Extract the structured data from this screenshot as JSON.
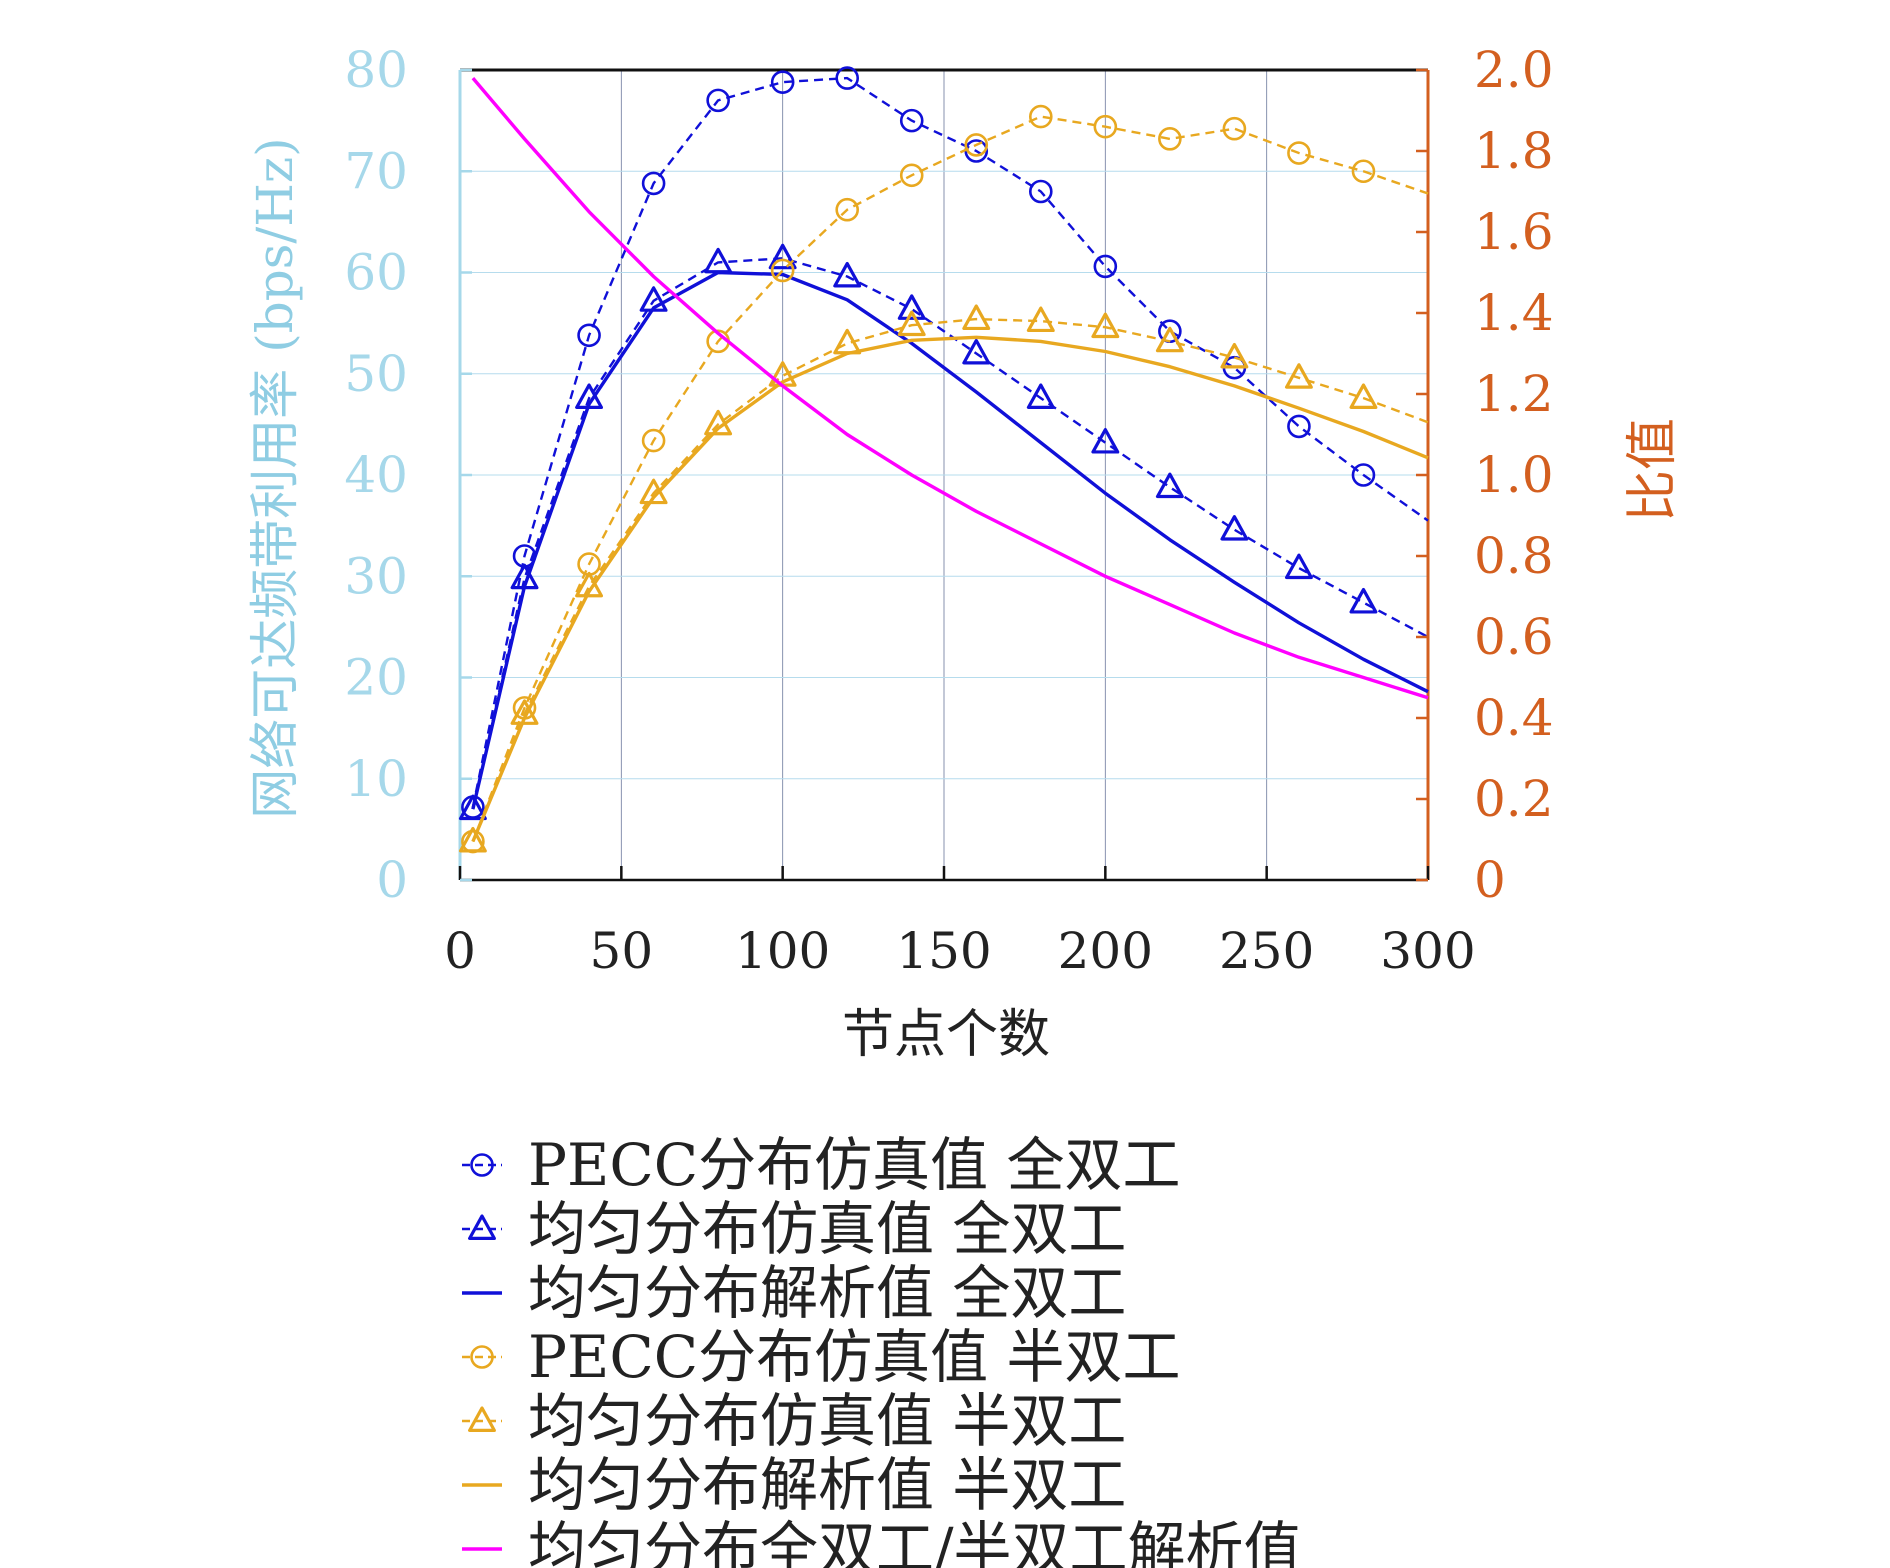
{
  "chart_data": {
    "type": "line",
    "xlabel": "节点个数",
    "ylabel_left": "网络可达频带利用率 (bps/Hz)",
    "ylabel_right": "比值",
    "xlim": [
      0,
      300
    ],
    "ylim_left": [
      0,
      80
    ],
    "ylim_right": [
      0,
      2.0
    ],
    "xticks": [
      "0",
      "50",
      "100",
      "150",
      "200",
      "250",
      "300"
    ],
    "yticks_left": [
      "0",
      "10",
      "20",
      "30",
      "40",
      "50",
      "60",
      "70",
      "80"
    ],
    "yticks_right": [
      "0",
      "0.2",
      "0.4",
      "0.6",
      "0.8",
      "1.0",
      "1.2",
      "1.4",
      "1.6",
      "1.8",
      "2.0"
    ],
    "grid": true,
    "legend_position": "below",
    "colors": {
      "full_duplex": "#1010d8",
      "half_duplex": "#e8a820",
      "ratio": "#ff00ff",
      "left_axis": "#a6d8ea",
      "right_axis": "#d35f1f"
    },
    "series": [
      {
        "name": "PECC分布仿真值 全双工",
        "axis": "left",
        "style": "dashed",
        "marker": "circle",
        "color": "#1010d8",
        "x": [
          4,
          20,
          40,
          60,
          80,
          100,
          120,
          140,
          160,
          180,
          200,
          220,
          240,
          260,
          280,
          300
        ],
        "y": [
          7.2,
          32,
          53.8,
          68.8,
          77,
          78.8,
          79.2,
          75,
          72,
          68,
          60.6,
          54.2,
          50.6,
          44.8,
          40,
          35.5
        ]
      },
      {
        "name": "均匀分布仿真值 全双工",
        "axis": "left",
        "style": "dashed",
        "marker": "triangle",
        "color": "#1010d8",
        "x": [
          4,
          20,
          40,
          60,
          80,
          100,
          120,
          140,
          160,
          180,
          200,
          220,
          240,
          260,
          280,
          300
        ],
        "y": [
          7,
          29.8,
          47.6,
          57.2,
          61,
          61.4,
          59.6,
          56.4,
          52,
          47.6,
          43.2,
          38.8,
          34.6,
          30.8,
          27.4,
          24
        ]
      },
      {
        "name": "均匀分布解析值 全双工",
        "axis": "left",
        "style": "solid",
        "marker": "none",
        "color": "#1010d8",
        "x": [
          4,
          20,
          40,
          60,
          80,
          100,
          120,
          140,
          160,
          180,
          200,
          220,
          240,
          260,
          280,
          300
        ],
        "y": [
          7,
          29,
          47,
          56.5,
          60,
          59.8,
          57.3,
          53,
          48.2,
          43.2,
          38.2,
          33.6,
          29.4,
          25.4,
          21.8,
          18.6
        ]
      },
      {
        "name": "PECC分布仿真值 半双工",
        "axis": "left",
        "style": "dashed",
        "marker": "circle",
        "color": "#e8a820",
        "x": [
          4,
          20,
          40,
          60,
          80,
          100,
          120,
          140,
          160,
          180,
          200,
          220,
          240,
          260,
          280,
          300
        ],
        "y": [
          3.8,
          17,
          31.2,
          43.4,
          53.2,
          60.2,
          66.2,
          69.6,
          72.6,
          75.4,
          74.4,
          73.2,
          74.2,
          71.8,
          70,
          67.8
        ]
      },
      {
        "name": "均匀分布仿真值 半双工",
        "axis": "left",
        "style": "dashed",
        "marker": "triangle",
        "color": "#e8a820",
        "x": [
          4,
          20,
          40,
          60,
          80,
          100,
          120,
          140,
          160,
          180,
          200,
          220,
          240,
          260,
          280,
          300
        ],
        "y": [
          3.8,
          16.4,
          29,
          38.2,
          45,
          49.8,
          53,
          54.8,
          55.4,
          55.2,
          54.6,
          53.2,
          51.6,
          49.6,
          47.6,
          45.2
        ]
      },
      {
        "name": "均匀分布解析值 半双工",
        "axis": "left",
        "style": "solid",
        "marker": "none",
        "color": "#e8a820",
        "x": [
          4,
          20,
          40,
          60,
          80,
          100,
          120,
          140,
          160,
          180,
          200,
          220,
          240,
          260,
          280,
          300
        ],
        "y": [
          3.8,
          16,
          28.5,
          37.8,
          44.6,
          49.2,
          52,
          53.3,
          53.6,
          53.2,
          52.2,
          50.7,
          48.8,
          46.6,
          44.3,
          41.7
        ]
      },
      {
        "name": "均匀分布全双工/半双工解析值",
        "axis": "right",
        "style": "solid",
        "marker": "none",
        "color": "#ff00ff",
        "x": [
          4,
          20,
          40,
          60,
          80,
          100,
          120,
          140,
          160,
          180,
          200,
          220,
          240,
          260,
          280,
          300
        ],
        "y": [
          1.98,
          1.83,
          1.65,
          1.49,
          1.35,
          1.22,
          1.1,
          1.0,
          0.91,
          0.83,
          0.75,
          0.68,
          0.61,
          0.55,
          0.5,
          0.45
        ]
      }
    ]
  }
}
